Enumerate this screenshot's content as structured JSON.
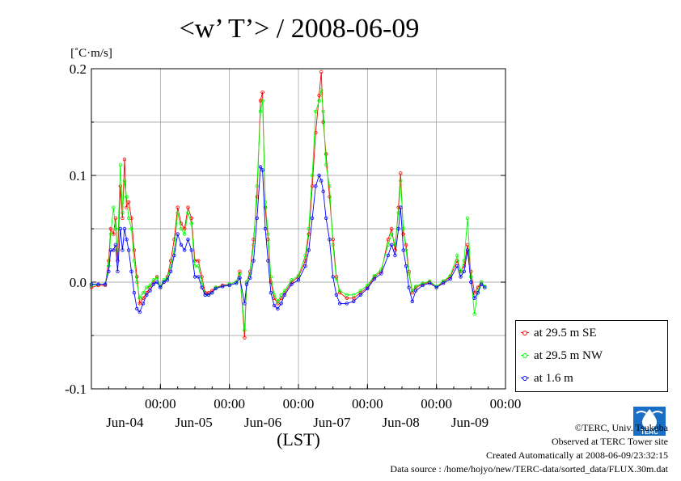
{
  "chart_data": {
    "type": "line",
    "title": "<w’ T’> / 2008-06-09",
    "yunit": "[˚C·m/s]",
    "xlabel": "(LST)",
    "ylim": [
      -0.1,
      0.2
    ],
    "yticks": [
      "0.2",
      "0.1",
      "0.0",
      "-0.1"
    ],
    "ytick_values": [
      0.2,
      0.1,
      0.0,
      -0.1
    ],
    "xlim": [
      0,
      6
    ],
    "xticks": [
      {
        "x": 1,
        "time": "00:00",
        "date": "Jun-04"
      },
      {
        "x": 2,
        "time": "00:00",
        "date": "Jun-05"
      },
      {
        "x": 3,
        "time": "00:00",
        "date": "Jun-06"
      },
      {
        "x": 4,
        "time": "00:00",
        "date": "Jun-07"
      },
      {
        "x": 5,
        "time": "00:00",
        "date": "Jun-08"
      },
      {
        "x": 6,
        "time": "00:00",
        "date": "Jun-09"
      }
    ],
    "grid": true,
    "legend_position": "right",
    "series": [
      {
        "name": "at 29.5 m SE",
        "color": "#ff0000",
        "points": [
          [
            0.0,
            -0.005
          ],
          [
            0.1,
            -0.003
          ],
          [
            0.2,
            -0.003
          ],
          [
            0.25,
            0.02
          ],
          [
            0.28,
            0.05
          ],
          [
            0.32,
            0.045
          ],
          [
            0.35,
            0.06
          ],
          [
            0.38,
            0.02
          ],
          [
            0.42,
            0.09
          ],
          [
            0.45,
            0.06
          ],
          [
            0.48,
            0.115
          ],
          [
            0.51,
            0.07
          ],
          [
            0.54,
            0.075
          ],
          [
            0.58,
            0.06
          ],
          [
            0.62,
            0.03
          ],
          [
            0.66,
            0.005
          ],
          [
            0.7,
            -0.02
          ],
          [
            0.75,
            -0.015
          ],
          [
            0.8,
            -0.01
          ],
          [
            0.85,
            -0.005
          ],
          [
            0.9,
            0.0
          ],
          [
            0.95,
            0.005
          ],
          [
            1.0,
            -0.005
          ],
          [
            1.05,
            0.0
          ],
          [
            1.1,
            0.005
          ],
          [
            1.15,
            0.02
          ],
          [
            1.2,
            0.04
          ],
          [
            1.25,
            0.07
          ],
          [
            1.3,
            0.055
          ],
          [
            1.35,
            0.05
          ],
          [
            1.4,
            0.07
          ],
          [
            1.45,
            0.06
          ],
          [
            1.5,
            0.02
          ],
          [
            1.55,
            0.02
          ],
          [
            1.6,
            0.005
          ],
          [
            1.65,
            -0.01
          ],
          [
            1.7,
            -0.01
          ],
          [
            1.75,
            -0.008
          ],
          [
            1.8,
            -0.005
          ],
          [
            1.9,
            -0.003
          ],
          [
            2.0,
            -0.002
          ],
          [
            2.1,
            0.0
          ],
          [
            2.15,
            0.01
          ],
          [
            2.22,
            -0.052
          ],
          [
            2.25,
            0.0
          ],
          [
            2.3,
            0.01
          ],
          [
            2.35,
            0.04
          ],
          [
            2.4,
            0.08
          ],
          [
            2.45,
            0.17
          ],
          [
            2.48,
            0.178
          ],
          [
            2.52,
            0.07
          ],
          [
            2.56,
            0.04
          ],
          [
            2.6,
            0.0
          ],
          [
            2.65,
            -0.015
          ],
          [
            2.7,
            -0.02
          ],
          [
            2.75,
            -0.015
          ],
          [
            2.8,
            -0.01
          ],
          [
            2.9,
            0.0
          ],
          [
            3.0,
            0.005
          ],
          [
            3.1,
            0.02
          ],
          [
            3.15,
            0.045
          ],
          [
            3.2,
            0.09
          ],
          [
            3.25,
            0.14
          ],
          [
            3.3,
            0.175
          ],
          [
            3.33,
            0.197
          ],
          [
            3.36,
            0.15
          ],
          [
            3.4,
            0.12
          ],
          [
            3.45,
            0.08
          ],
          [
            3.5,
            0.04
          ],
          [
            3.55,
            0.005
          ],
          [
            3.6,
            -0.01
          ],
          [
            3.7,
            -0.015
          ],
          [
            3.8,
            -0.015
          ],
          [
            3.9,
            -0.01
          ],
          [
            4.0,
            -0.005
          ],
          [
            4.1,
            0.005
          ],
          [
            4.2,
            0.01
          ],
          [
            4.3,
            0.04
          ],
          [
            4.35,
            0.05
          ],
          [
            4.4,
            0.03
          ],
          [
            4.45,
            0.07
          ],
          [
            4.48,
            0.102
          ],
          [
            4.52,
            0.045
          ],
          [
            4.56,
            0.035
          ],
          [
            4.6,
            0.01
          ],
          [
            4.65,
            -0.01
          ],
          [
            4.7,
            -0.005
          ],
          [
            4.8,
            -0.002
          ],
          [
            4.9,
            0.0
          ],
          [
            5.0,
            -0.005
          ],
          [
            5.1,
            0.0
          ],
          [
            5.2,
            0.005
          ],
          [
            5.3,
            0.02
          ],
          [
            5.35,
            0.01
          ],
          [
            5.4,
            0.015
          ],
          [
            5.45,
            0.035
          ],
          [
            5.5,
            0.01
          ],
          [
            5.55,
            -0.01
          ],
          [
            5.6,
            -0.005
          ],
          [
            5.65,
            0.0
          ],
          [
            5.7,
            -0.005
          ]
        ]
      },
      {
        "name": "at 29.5 m NW",
        "color": "#00ff00",
        "points": [
          [
            0.0,
            -0.003
          ],
          [
            0.1,
            -0.002
          ],
          [
            0.2,
            -0.002
          ],
          [
            0.25,
            0.015
          ],
          [
            0.28,
            0.045
          ],
          [
            0.32,
            0.07
          ],
          [
            0.35,
            0.05
          ],
          [
            0.38,
            0.03
          ],
          [
            0.42,
            0.11
          ],
          [
            0.45,
            0.065
          ],
          [
            0.48,
            0.095
          ],
          [
            0.51,
            0.08
          ],
          [
            0.54,
            0.06
          ],
          [
            0.58,
            0.05
          ],
          [
            0.62,
            0.02
          ],
          [
            0.66,
            0.0
          ],
          [
            0.7,
            -0.015
          ],
          [
            0.75,
            -0.01
          ],
          [
            0.8,
            -0.005
          ],
          [
            0.85,
            -0.003
          ],
          [
            0.9,
            0.002
          ],
          [
            0.95,
            0.004
          ],
          [
            1.0,
            -0.004
          ],
          [
            1.05,
            0.002
          ],
          [
            1.1,
            0.004
          ],
          [
            1.15,
            0.015
          ],
          [
            1.2,
            0.03
          ],
          [
            1.25,
            0.065
          ],
          [
            1.3,
            0.05
          ],
          [
            1.35,
            0.045
          ],
          [
            1.4,
            0.065
          ],
          [
            1.45,
            0.055
          ],
          [
            1.5,
            0.015
          ],
          [
            1.55,
            0.015
          ],
          [
            1.6,
            0.0
          ],
          [
            1.65,
            -0.012
          ],
          [
            1.7,
            -0.012
          ],
          [
            1.75,
            -0.01
          ],
          [
            1.8,
            -0.005
          ],
          [
            1.9,
            -0.004
          ],
          [
            2.0,
            -0.002
          ],
          [
            2.1,
            0.0
          ],
          [
            2.15,
            0.008
          ],
          [
            2.22,
            -0.045
          ],
          [
            2.25,
            0.0
          ],
          [
            2.3,
            0.008
          ],
          [
            2.35,
            0.035
          ],
          [
            2.4,
            0.09
          ],
          [
            2.45,
            0.16
          ],
          [
            2.48,
            0.17
          ],
          [
            2.52,
            0.075
          ],
          [
            2.56,
            0.045
          ],
          [
            2.6,
            0.005
          ],
          [
            2.65,
            -0.012
          ],
          [
            2.7,
            -0.018
          ],
          [
            2.75,
            -0.012
          ],
          [
            2.8,
            -0.008
          ],
          [
            2.9,
            0.002
          ],
          [
            3.0,
            0.006
          ],
          [
            3.1,
            0.025
          ],
          [
            3.15,
            0.05
          ],
          [
            3.2,
            0.1
          ],
          [
            3.25,
            0.16
          ],
          [
            3.3,
            0.17
          ],
          [
            3.33,
            0.18
          ],
          [
            3.36,
            0.16
          ],
          [
            3.4,
            0.11
          ],
          [
            3.45,
            0.09
          ],
          [
            3.5,
            0.035
          ],
          [
            3.55,
            0.003
          ],
          [
            3.6,
            -0.008
          ],
          [
            3.7,
            -0.012
          ],
          [
            3.8,
            -0.012
          ],
          [
            3.9,
            -0.008
          ],
          [
            4.0,
            -0.003
          ],
          [
            4.1,
            0.006
          ],
          [
            4.2,
            0.012
          ],
          [
            4.3,
            0.035
          ],
          [
            4.35,
            0.045
          ],
          [
            4.4,
            0.035
          ],
          [
            4.45,
            0.065
          ],
          [
            4.48,
            0.095
          ],
          [
            4.52,
            0.05
          ],
          [
            4.56,
            0.03
          ],
          [
            4.6,
            0.008
          ],
          [
            4.65,
            -0.008
          ],
          [
            4.7,
            -0.004
          ],
          [
            4.8,
            -0.001
          ],
          [
            4.9,
            0.001
          ],
          [
            5.0,
            -0.004
          ],
          [
            5.1,
            0.001
          ],
          [
            5.2,
            0.006
          ],
          [
            5.3,
            0.025
          ],
          [
            5.35,
            0.008
          ],
          [
            5.4,
            0.02
          ],
          [
            5.45,
            0.06
          ],
          [
            5.5,
            0.005
          ],
          [
            5.55,
            -0.03
          ],
          [
            5.6,
            -0.008
          ],
          [
            5.65,
            0.0
          ],
          [
            5.7,
            -0.004
          ]
        ]
      },
      {
        "name": "at 1.6 m",
        "color": "#0000ff",
        "points": [
          [
            0.0,
            -0.002
          ],
          [
            0.1,
            -0.002
          ],
          [
            0.2,
            -0.002
          ],
          [
            0.25,
            0.01
          ],
          [
            0.28,
            0.03
          ],
          [
            0.32,
            0.03
          ],
          [
            0.35,
            0.035
          ],
          [
            0.38,
            0.01
          ],
          [
            0.42,
            0.05
          ],
          [
            0.45,
            0.03
          ],
          [
            0.48,
            0.05
          ],
          [
            0.51,
            0.04
          ],
          [
            0.54,
            0.03
          ],
          [
            0.58,
            0.01
          ],
          [
            0.62,
            -0.01
          ],
          [
            0.66,
            -0.025
          ],
          [
            0.7,
            -0.028
          ],
          [
            0.75,
            -0.02
          ],
          [
            0.8,
            -0.012
          ],
          [
            0.85,
            -0.008
          ],
          [
            0.9,
            -0.002
          ],
          [
            0.95,
            0.0
          ],
          [
            1.0,
            -0.005
          ],
          [
            1.05,
            0.0
          ],
          [
            1.1,
            0.002
          ],
          [
            1.15,
            0.01
          ],
          [
            1.2,
            0.025
          ],
          [
            1.25,
            0.045
          ],
          [
            1.3,
            0.035
          ],
          [
            1.35,
            0.03
          ],
          [
            1.4,
            0.04
          ],
          [
            1.45,
            0.03
          ],
          [
            1.5,
            0.005
          ],
          [
            1.55,
            0.005
          ],
          [
            1.6,
            -0.005
          ],
          [
            1.65,
            -0.012
          ],
          [
            1.7,
            -0.012
          ],
          [
            1.75,
            -0.01
          ],
          [
            1.8,
            -0.006
          ],
          [
            1.9,
            -0.004
          ],
          [
            2.0,
            -0.003
          ],
          [
            2.1,
            -0.001
          ],
          [
            2.15,
            0.004
          ],
          [
            2.22,
            -0.02
          ],
          [
            2.25,
            -0.002
          ],
          [
            2.3,
            0.004
          ],
          [
            2.35,
            0.02
          ],
          [
            2.4,
            0.06
          ],
          [
            2.45,
            0.108
          ],
          [
            2.48,
            0.105
          ],
          [
            2.52,
            0.05
          ],
          [
            2.56,
            0.02
          ],
          [
            2.6,
            -0.01
          ],
          [
            2.65,
            -0.022
          ],
          [
            2.7,
            -0.025
          ],
          [
            2.75,
            -0.02
          ],
          [
            2.8,
            -0.012
          ],
          [
            2.9,
            -0.002
          ],
          [
            3.0,
            0.002
          ],
          [
            3.1,
            0.015
          ],
          [
            3.15,
            0.03
          ],
          [
            3.2,
            0.06
          ],
          [
            3.25,
            0.09
          ],
          [
            3.3,
            0.1
          ],
          [
            3.33,
            0.095
          ],
          [
            3.36,
            0.085
          ],
          [
            3.4,
            0.06
          ],
          [
            3.45,
            0.04
          ],
          [
            3.5,
            0.005
          ],
          [
            3.55,
            -0.012
          ],
          [
            3.6,
            -0.02
          ],
          [
            3.7,
            -0.02
          ],
          [
            3.8,
            -0.018
          ],
          [
            3.9,
            -0.012
          ],
          [
            4.0,
            -0.006
          ],
          [
            4.1,
            0.003
          ],
          [
            4.2,
            0.008
          ],
          [
            4.3,
            0.025
          ],
          [
            4.35,
            0.035
          ],
          [
            4.4,
            0.025
          ],
          [
            4.45,
            0.05
          ],
          [
            4.48,
            0.07
          ],
          [
            4.52,
            0.03
          ],
          [
            4.56,
            0.015
          ],
          [
            4.6,
            -0.005
          ],
          [
            4.65,
            -0.018
          ],
          [
            4.7,
            -0.008
          ],
          [
            4.8,
            -0.003
          ],
          [
            4.9,
            -0.001
          ],
          [
            5.0,
            -0.005
          ],
          [
            5.1,
            -0.001
          ],
          [
            5.2,
            0.003
          ],
          [
            5.3,
            0.015
          ],
          [
            5.35,
            0.005
          ],
          [
            5.4,
            0.01
          ],
          [
            5.45,
            0.03
          ],
          [
            5.5,
            0.0
          ],
          [
            5.55,
            -0.015
          ],
          [
            5.6,
            -0.01
          ],
          [
            5.65,
            -0.002
          ],
          [
            5.7,
            -0.005
          ]
        ]
      }
    ]
  },
  "credits": {
    "copyright": "©TERC, Univ. Tsukuba",
    "observed": "Observed at TERC Tower site",
    "created": "Created Automatically at 2008-06-09/23:32:15",
    "source": "Data source : /home/hojyo/new/TERC-data/sorted_data/FLUX.30m.dat",
    "logo_text": "TERC",
    "logo_color": "#1a6fc4"
  }
}
